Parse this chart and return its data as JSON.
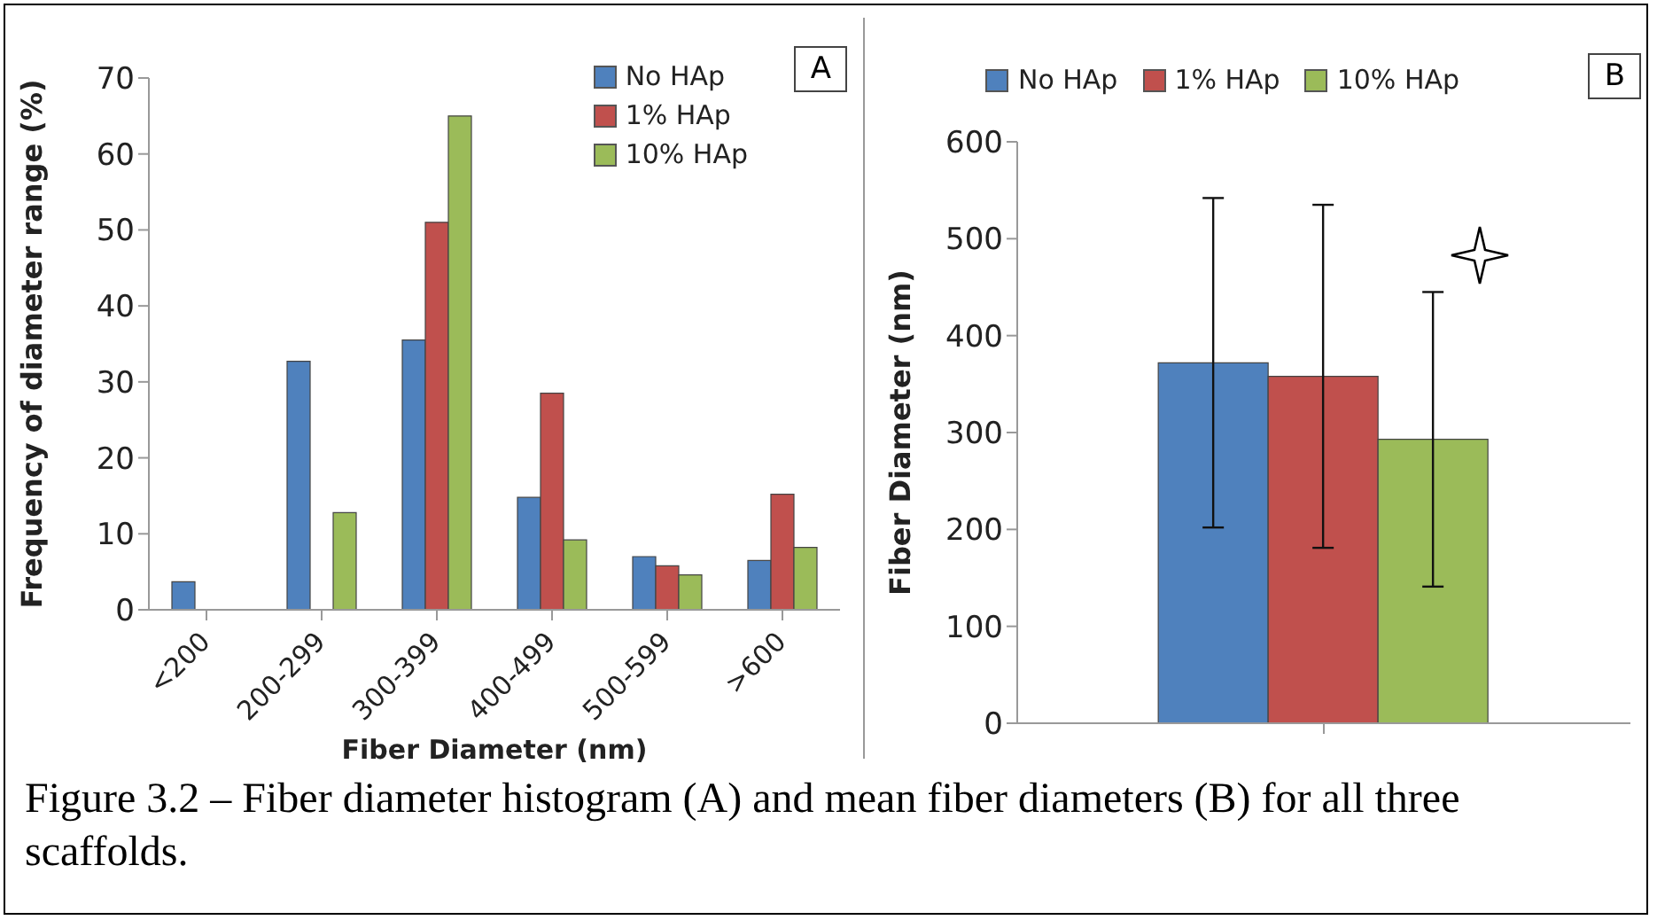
{
  "chart_data": [
    {
      "type": "bar",
      "title": "A",
      "xlabel": "Fiber Diameter (nm)",
      "ylabel": "Frequency of diameter range (%)",
      "categories": [
        "<200",
        "200-299",
        "300-399",
        "400-499",
        "500-599",
        ">600"
      ],
      "series": [
        {
          "name": "No HAp",
          "color": "#4f81bd",
          "values": [
            3.7,
            32.7,
            35.5,
            14.8,
            7,
            6.5
          ]
        },
        {
          "name": "1% HAp",
          "color": "#c0504d",
          "values": [
            0,
            0,
            51,
            28.5,
            5.8,
            15.2
          ]
        },
        {
          "name": "10% HAp",
          "color": "#9bbb59",
          "values": [
            0,
            12.8,
            65,
            9.2,
            4.6,
            8.2
          ]
        }
      ],
      "ylim": [
        0,
        70
      ],
      "yticks": [
        0,
        10,
        20,
        30,
        40,
        50,
        60,
        70
      ],
      "grid": false,
      "legend": "top right",
      "annotations": [
        "Figure 3.2 – Fiber diameter histogram (A) and mean fiber diameters (B) for all three scaffolds."
      ]
    },
    {
      "type": "bar",
      "title": "B",
      "ylabel": "Fiber Diameter (nm)",
      "categories": [
        null
      ],
      "series": [
        {
          "name": "No HAp",
          "color": "#4f81bd",
          "values": [
            372
          ],
          "errors": [
            170
          ]
        },
        {
          "name": "1% HAp",
          "color": "#c0504d",
          "values": [
            358
          ],
          "errors": [
            177
          ]
        },
        {
          "name": "10% HAp",
          "color": "#9bbb59",
          "values": [
            293
          ],
          "errors": [
            152
          ]
        }
      ],
      "ylim": [
        0,
        600
      ],
      "yticks": [
        0,
        100,
        200,
        300,
        400,
        500,
        600
      ],
      "grid": false,
      "legend": "top"
    }
  ]
}
